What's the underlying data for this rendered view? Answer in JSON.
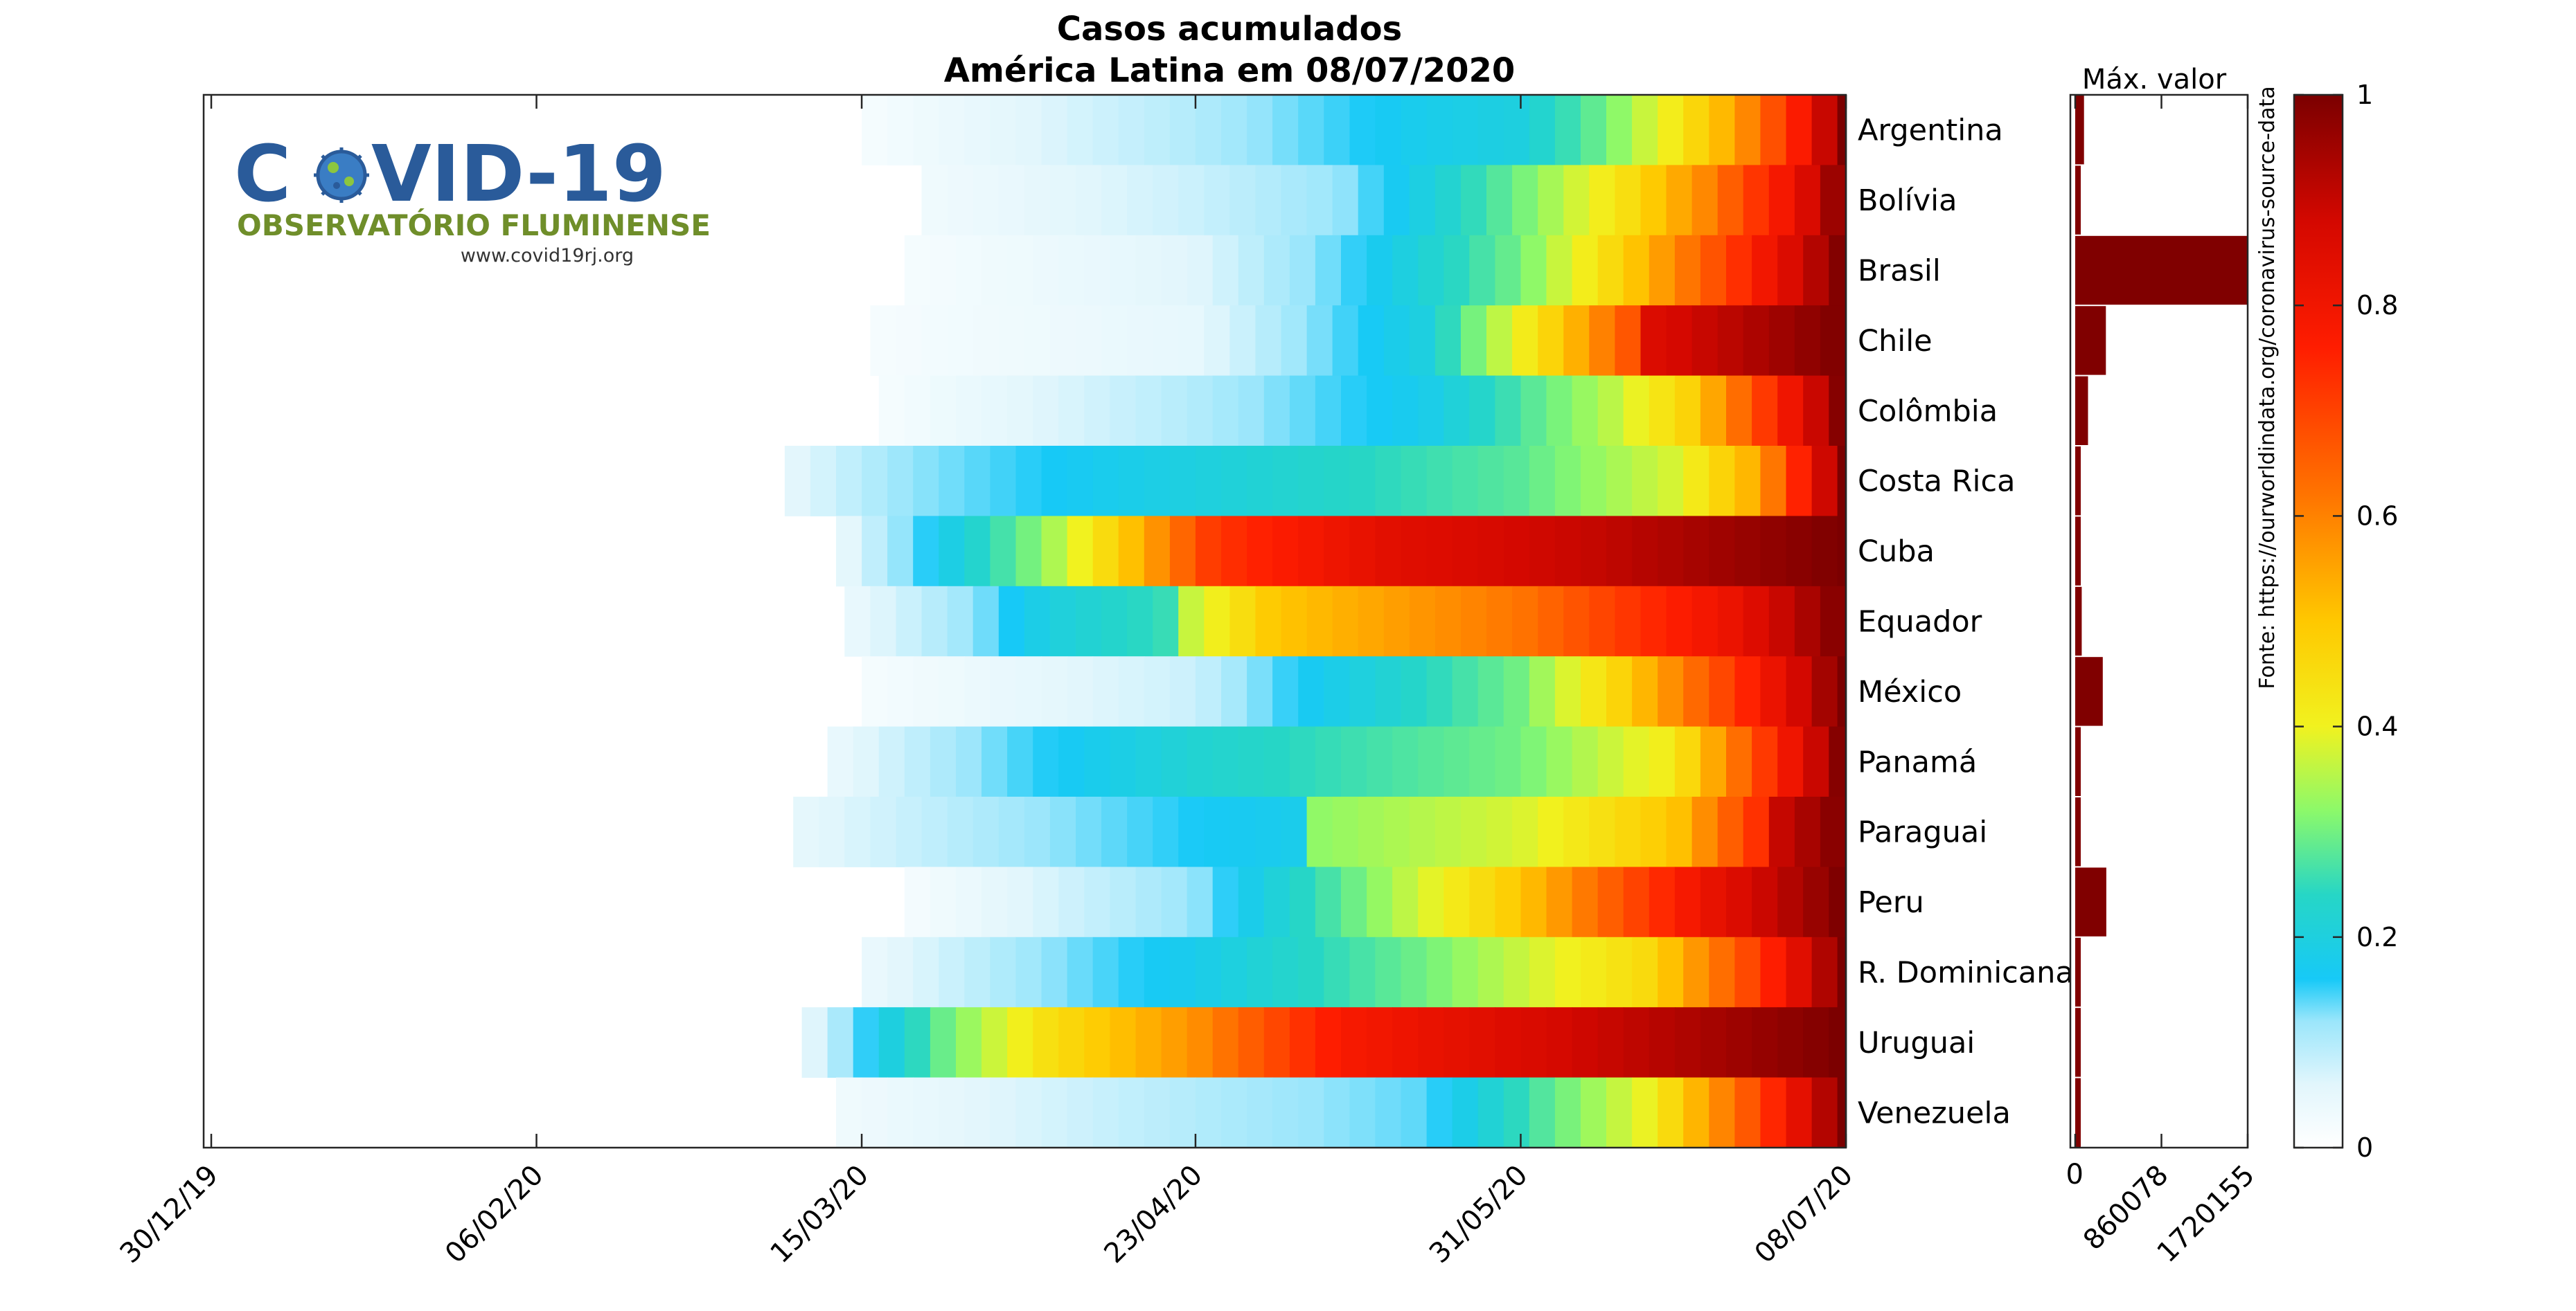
{
  "chart_data": {
    "type": "heatmap",
    "title_lines": [
      "Casos acumulados",
      "América Latina em 08/07/2020"
    ],
    "x_ticks": [
      "30/12/19",
      "06/02/20",
      "15/03/20",
      "23/04/20",
      "31/05/20",
      "08/07/20"
    ],
    "x_range": [
      "30/12/19",
      "08/07/20"
    ],
    "max_label": "Máx. valor",
    "max_axis_ticks": [
      "0",
      "860078",
      "1720155"
    ],
    "max_axis_range": [
      0,
      1720155
    ],
    "colorbar_ticks": [
      "0",
      "0.2",
      "0.4",
      "0.6",
      "0.8",
      "1"
    ],
    "colorbar_range": [
      0,
      1
    ],
    "source": "Fonte: https://ourworldindata.org/coronavirus-source-data",
    "colors": {
      "stops": [
        {
          "v": 0.0,
          "c": "#ffffff"
        },
        {
          "v": 0.06,
          "c": "#e2f6fc"
        },
        {
          "v": 0.12,
          "c": "#9be6fb"
        },
        {
          "v": 0.16,
          "c": "#17c9f7"
        },
        {
          "v": 0.24,
          "c": "#26d6c6"
        },
        {
          "v": 0.32,
          "c": "#8cf96a"
        },
        {
          "v": 0.4,
          "c": "#f1f21f"
        },
        {
          "v": 0.5,
          "c": "#ffc800"
        },
        {
          "v": 0.62,
          "c": "#ff7400"
        },
        {
          "v": 0.76,
          "c": "#ff1d00"
        },
        {
          "v": 0.88,
          "c": "#d40800"
        },
        {
          "v": 1.0,
          "c": "#7b0000"
        }
      ],
      "bar": "#800000"
    },
    "series": [
      {
        "name": "Argentina",
        "max": 88000,
        "points": [
          [
            "15/03/20",
            0.02
          ],
          [
            "23/04/20",
            0.1
          ],
          [
            "20/05/20",
            0.18
          ],
          [
            "31/05/20",
            0.2
          ],
          [
            "10/06/20",
            0.3
          ],
          [
            "18/06/20",
            0.42
          ],
          [
            "25/06/20",
            0.55
          ],
          [
            "02/07/20",
            0.75
          ],
          [
            "08/07/20",
            1.0
          ]
        ]
      },
      {
        "name": "Bolívia",
        "max": 43000,
        "points": [
          [
            "22/03/20",
            0.03
          ],
          [
            "23/04/20",
            0.08
          ],
          [
            "10/05/20",
            0.12
          ],
          [
            "18/05/20",
            0.18
          ],
          [
            "31/05/20",
            0.3
          ],
          [
            "12/06/20",
            0.44
          ],
          [
            "22/06/20",
            0.6
          ],
          [
            "02/07/20",
            0.82
          ],
          [
            "08/07/20",
            1.0
          ]
        ]
      },
      {
        "name": "Brasil",
        "max": 1720155,
        "points": [
          [
            "20/03/20",
            0.02
          ],
          [
            "23/04/20",
            0.06
          ],
          [
            "10/05/20",
            0.14
          ],
          [
            "31/05/20",
            0.3
          ],
          [
            "12/06/20",
            0.48
          ],
          [
            "25/06/20",
            0.72
          ],
          [
            "08/07/20",
            1.0
          ]
        ]
      },
      {
        "name": "Chile",
        "max": 306000,
        "points": [
          [
            "16/03/20",
            0.02
          ],
          [
            "23/04/20",
            0.05
          ],
          [
            "20/05/20",
            0.2
          ],
          [
            "05/06/20",
            0.5
          ],
          [
            "13/06/20",
            0.68
          ],
          [
            "14/06/20",
            0.85
          ],
          [
            "08/07/20",
            1.0
          ]
        ]
      },
      {
        "name": "Colômbia",
        "max": 128000,
        "points": [
          [
            "17/03/20",
            0.02
          ],
          [
            "23/04/20",
            0.1
          ],
          [
            "20/05/20",
            0.18
          ],
          [
            "10/06/20",
            0.35
          ],
          [
            "20/06/20",
            0.48
          ],
          [
            "28/06/20",
            0.7
          ],
          [
            "08/07/20",
            1.0
          ]
        ]
      },
      {
        "name": "Costa Rica",
        "max": 6500,
        "points": [
          [
            "06/03/20",
            0.05
          ],
          [
            "20/03/20",
            0.12
          ],
          [
            "10/04/20",
            0.17
          ],
          [
            "23/04/20",
            0.2
          ],
          [
            "31/05/20",
            0.28
          ],
          [
            "18/06/20",
            0.38
          ],
          [
            "28/06/20",
            0.55
          ],
          [
            "08/07/20",
            1.0
          ]
        ]
      },
      {
        "name": "Cuba",
        "max": 2400,
        "points": [
          [
            "12/03/20",
            0.04
          ],
          [
            "23/03/20",
            0.16
          ],
          [
            "05/04/20",
            0.32
          ],
          [
            "15/04/20",
            0.5
          ],
          [
            "25/04/20",
            0.72
          ],
          [
            "15/05/20",
            0.84
          ],
          [
            "08/06/20",
            0.9
          ],
          [
            "08/07/20",
            1.0
          ]
        ]
      },
      {
        "name": "Equador",
        "max": 65000,
        "points": [
          [
            "13/03/20",
            0.04
          ],
          [
            "28/03/20",
            0.12
          ],
          [
            "06/04/20",
            0.2
          ],
          [
            "21/04/20",
            0.26
          ],
          [
            "22/04/20",
            0.36
          ],
          [
            "02/05/20",
            0.5
          ],
          [
            "31/05/20",
            0.62
          ],
          [
            "25/06/20",
            0.82
          ],
          [
            "08/07/20",
            1.0
          ]
        ]
      },
      {
        "name": "México",
        "max": 275000,
        "points": [
          [
            "15/03/20",
            0.02
          ],
          [
            "23/04/20",
            0.08
          ],
          [
            "05/05/20",
            0.16
          ],
          [
            "31/05/20",
            0.3
          ],
          [
            "12/06/20",
            0.48
          ],
          [
            "25/06/20",
            0.72
          ],
          [
            "08/07/20",
            1.0
          ]
        ]
      },
      {
        "name": "Panamá",
        "max": 45000,
        "points": [
          [
            "11/03/20",
            0.04
          ],
          [
            "01/04/20",
            0.14
          ],
          [
            "23/04/20",
            0.22
          ],
          [
            "31/05/20",
            0.3
          ],
          [
            "18/06/20",
            0.42
          ],
          [
            "28/06/20",
            0.7
          ],
          [
            "08/07/20",
            1.0
          ]
        ]
      },
      {
        "name": "Paraguai",
        "max": 2700,
        "points": [
          [
            "07/03/20",
            0.05
          ],
          [
            "05/04/20",
            0.12
          ],
          [
            "23/04/20",
            0.16
          ],
          [
            "05/05/20",
            0.18
          ],
          [
            "06/05/20",
            0.32
          ],
          [
            "31/05/20",
            0.38
          ],
          [
            "18/06/20",
            0.5
          ],
          [
            "28/06/20",
            0.74
          ],
          [
            "29/06/20",
            0.88
          ],
          [
            "08/07/20",
            1.0
          ]
        ]
      },
      {
        "name": "Peru",
        "max": 310000,
        "points": [
          [
            "20/03/20",
            0.02
          ],
          [
            "23/04/20",
            0.12
          ],
          [
            "10/05/20",
            0.28
          ],
          [
            "31/05/20",
            0.5
          ],
          [
            "08/06/20",
            0.62
          ],
          [
            "22/06/20",
            0.82
          ],
          [
            "08/07/20",
            1.0
          ]
        ]
      },
      {
        "name": "R. Dominicana",
        "max": 40000,
        "points": [
          [
            "15/03/20",
            0.04
          ],
          [
            "05/04/20",
            0.12
          ],
          [
            "23/04/20",
            0.18
          ],
          [
            "20/05/20",
            0.3
          ],
          [
            "15/06/20",
            0.46
          ],
          [
            "28/06/20",
            0.72
          ],
          [
            "08/07/20",
            1.0
          ]
        ]
      },
      {
        "name": "Uruguai",
        "max": 980,
        "points": [
          [
            "08/03/20",
            0.04
          ],
          [
            "16/03/20",
            0.16
          ],
          [
            "25/03/20",
            0.3
          ],
          [
            "05/04/20",
            0.44
          ],
          [
            "23/04/20",
            0.58
          ],
          [
            "10/05/20",
            0.78
          ],
          [
            "31/05/20",
            0.86
          ],
          [
            "08/07/20",
            1.0
          ]
        ]
      },
      {
        "name": "Venezuela",
        "max": 8000,
        "points": [
          [
            "12/03/20",
            0.03
          ],
          [
            "23/04/20",
            0.1
          ],
          [
            "20/05/20",
            0.14
          ],
          [
            "31/05/20",
            0.25
          ],
          [
            "15/06/20",
            0.4
          ],
          [
            "28/06/20",
            0.7
          ],
          [
            "08/07/20",
            1.0
          ]
        ]
      }
    ]
  },
  "logo": {
    "title_left": "C",
    "title_right": "VID-19",
    "subtitle": "OBSERVATÓRIO FLUMINENSE",
    "url": "www.covid19rj.org"
  }
}
